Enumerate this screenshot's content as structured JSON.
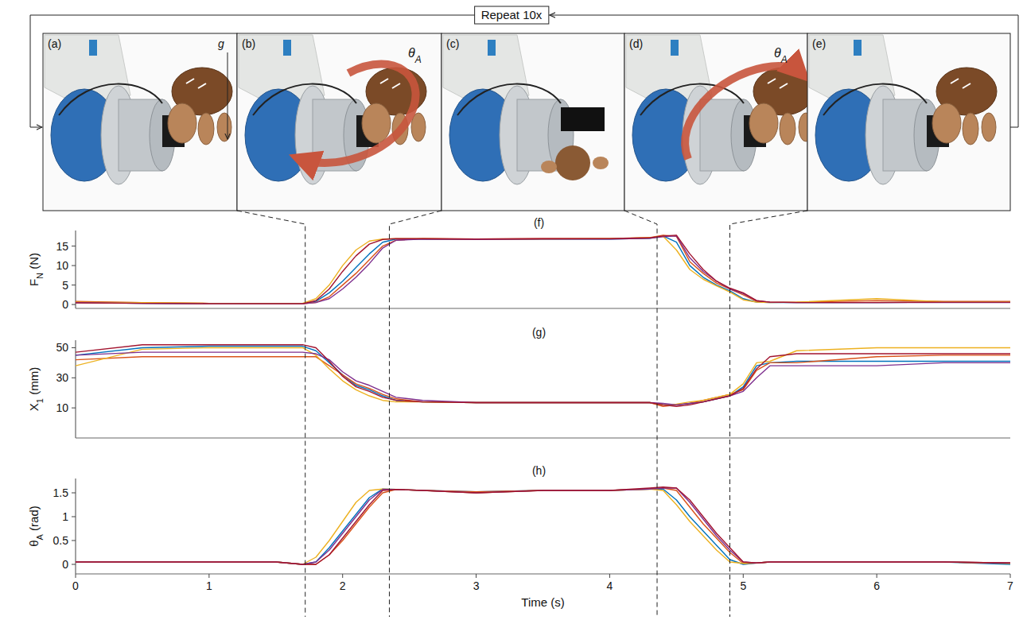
{
  "figure": {
    "repeat_label": "Repeat 10x",
    "gravity_label": "g",
    "panels": [
      {
        "label": "(a)"
      },
      {
        "label": "(b)",
        "annotation": [
          {
            "text": "θ"
          },
          {
            "text": "A",
            "sub": true
          }
        ]
      },
      {
        "label": "(c)"
      },
      {
        "label": "(d)",
        "annotation": [
          {
            "text": "θ"
          },
          {
            "text": "A",
            "sub": true
          }
        ]
      },
      {
        "label": "(e)"
      }
    ],
    "phase_times": [
      1.72,
      2.35,
      4.355,
      4.9
    ]
  },
  "chart_data": [
    {
      "type": "line",
      "title": "(f)",
      "ylabel": [
        {
          "text": "F"
        },
        {
          "text": "N",
          "sub": true
        },
        {
          "text": " (N)"
        }
      ],
      "x": [
        0,
        0.5,
        1,
        1.5,
        1.7,
        1.8,
        1.9,
        2.0,
        2.1,
        2.2,
        2.3,
        2.4,
        2.6,
        3,
        3.5,
        4,
        4.3,
        4.4,
        4.5,
        4.6,
        4.7,
        4.8,
        4.9,
        5.0,
        5.1,
        5.2,
        5.4,
        6,
        6.5,
        7
      ],
      "xlim": [
        0,
        7
      ],
      "ylim": [
        -1,
        19
      ],
      "yticks": [
        0,
        5,
        10,
        15
      ],
      "tick_labels": "y",
      "series": [
        {
          "color": "#0072bd",
          "values": [
            0.5,
            0.3,
            0.2,
            0.2,
            0.2,
            0.8,
            3,
            6,
            9.5,
            13,
            16,
            16.8,
            16.8,
            16.7,
            16.8,
            16.8,
            17,
            17.6,
            16,
            10,
            7,
            5,
            3.5,
            1.5,
            0.6,
            0.5,
            0.5,
            0.5,
            0.6,
            0.6
          ]
        },
        {
          "color": "#d95319",
          "values": [
            0.8,
            0.5,
            0.3,
            0.2,
            0.2,
            0.5,
            2,
            5,
            8,
            11.5,
            15,
            16.5,
            16.9,
            16.8,
            16.9,
            16.9,
            17.2,
            17.8,
            17.5,
            11,
            8,
            5.5,
            4,
            2.5,
            0.8,
            0.6,
            0.6,
            1,
            0.8,
            0.8
          ]
        },
        {
          "color": "#edb120",
          "values": [
            0.6,
            0.5,
            0.3,
            0.3,
            0.3,
            1.5,
            5,
            10,
            14,
            16.3,
            16.8,
            16.9,
            16.9,
            16.7,
            16.8,
            16.9,
            17.1,
            17.5,
            14,
            9,
            6.5,
            4.8,
            3.2,
            1.2,
            0.6,
            0.5,
            0.6,
            1.5,
            0.7,
            0.7
          ]
        },
        {
          "color": "#7e2f8e",
          "values": [
            0.5,
            0.3,
            0.2,
            0.2,
            0.2,
            0.5,
            1.5,
            4,
            7,
            10.5,
            14.5,
            16.5,
            16.8,
            16.7,
            16.8,
            16.8,
            17,
            17.4,
            17.6,
            12,
            8.5,
            6,
            4,
            2.8,
            1,
            0.6,
            0.5,
            0.5,
            0.5,
            0.5
          ]
        },
        {
          "color": "#a2142f",
          "values": [
            0.4,
            0.3,
            0.2,
            0.2,
            0.2,
            1,
            4,
            8.5,
            12.5,
            15.5,
            16.7,
            16.9,
            16.9,
            16.8,
            16.9,
            16.9,
            17.1,
            17.6,
            17.8,
            13,
            9,
            6,
            4.2,
            3,
            1,
            0.6,
            0.5,
            0.5,
            0.6,
            0.6
          ]
        }
      ]
    },
    {
      "type": "line",
      "title": "(g)",
      "ylabel": [
        {
          "text": "X"
        },
        {
          "text": "1",
          "sub": true
        },
        {
          "text": " (mm)"
        }
      ],
      "x": [
        0,
        0.5,
        1,
        1.5,
        1.7,
        1.8,
        1.9,
        2.0,
        2.1,
        2.2,
        2.3,
        2.4,
        2.6,
        3,
        3.5,
        4,
        4.3,
        4.4,
        4.5,
        4.6,
        4.7,
        4.8,
        4.9,
        5.0,
        5.1,
        5.2,
        5.4,
        6,
        6.5,
        7
      ],
      "xlim": [
        0,
        7
      ],
      "ylim": [
        -10,
        55
      ],
      "yticks": [
        10,
        30,
        50
      ],
      "tick_labels": "y",
      "series": [
        {
          "color": "#0072bd",
          "values": [
            45,
            50,
            51,
            51,
            51,
            48,
            40,
            32,
            25,
            22,
            18,
            15,
            14,
            13.5,
            13.5,
            13.5,
            13.5,
            12,
            12,
            13,
            14,
            16,
            18,
            24,
            38,
            40,
            41,
            41,
            41,
            41
          ]
        },
        {
          "color": "#d95319",
          "values": [
            42,
            44,
            44,
            44,
            44,
            44,
            38,
            32,
            26,
            23,
            19,
            16,
            14,
            13.5,
            13.5,
            13.5,
            13.5,
            11,
            12,
            13,
            15,
            17,
            19,
            22,
            35,
            40,
            40,
            44,
            45,
            45
          ]
        },
        {
          "color": "#edb120",
          "values": [
            38,
            49,
            50,
            50,
            50,
            45,
            36,
            28,
            22,
            18,
            15,
            14,
            14,
            13.5,
            13.5,
            13.5,
            13.5,
            12,
            12.5,
            14,
            15,
            17,
            19,
            26,
            40,
            41,
            48,
            50,
            50,
            50
          ]
        },
        {
          "color": "#7e2f8e",
          "values": [
            45,
            47,
            47,
            47,
            47,
            46,
            42,
            34,
            28,
            25,
            21,
            17,
            15,
            13.5,
            13.5,
            13.5,
            13.5,
            13,
            12,
            13,
            14,
            16,
            18,
            21,
            30,
            38,
            38,
            38,
            40,
            40
          ]
        },
        {
          "color": "#a2142f",
          "values": [
            47,
            52,
            52,
            52,
            52,
            50,
            41,
            31,
            24,
            21,
            17,
            15,
            14,
            13.5,
            13.5,
            13.5,
            13.5,
            12,
            11,
            12,
            14,
            16,
            18,
            23,
            36,
            44,
            46,
            46,
            46,
            46
          ]
        }
      ]
    },
    {
      "type": "line",
      "title": "(h)",
      "ylabel": [
        {
          "text": "θ"
        },
        {
          "text": "A",
          "sub": true
        },
        {
          "text": " (rad)"
        }
      ],
      "xlabel": "Time (s)",
      "x": [
        0,
        0.5,
        1,
        1.5,
        1.7,
        1.8,
        1.9,
        2.0,
        2.1,
        2.2,
        2.3,
        2.4,
        2.6,
        3,
        3.5,
        4,
        4.3,
        4.4,
        4.5,
        4.6,
        4.7,
        4.8,
        4.9,
        5.0,
        5.1,
        5.2,
        5.4,
        6,
        6.5,
        7
      ],
      "xlim": [
        0,
        7
      ],
      "xticks": [
        0,
        1,
        2,
        3,
        4,
        5,
        6,
        7
      ],
      "ylim": [
        -0.2,
        1.8
      ],
      "yticks": [
        0,
        0.5,
        1,
        1.5
      ],
      "series": [
        {
          "color": "#0072bd",
          "values": [
            0.05,
            0.05,
            0.05,
            0.05,
            0.0,
            0.05,
            0.35,
            0.7,
            1.05,
            1.4,
            1.58,
            1.57,
            1.55,
            1.52,
            1.55,
            1.55,
            1.58,
            1.58,
            1.35,
            1.0,
            0.7,
            0.4,
            0.1,
            0.0,
            0.03,
            0.05,
            0.05,
            0.05,
            0.05,
            0.0
          ]
        },
        {
          "color": "#d95319",
          "values": [
            0.05,
            0.05,
            0.05,
            0.05,
            0.0,
            0.0,
            0.2,
            0.5,
            0.85,
            1.2,
            1.5,
            1.57,
            1.55,
            1.52,
            1.55,
            1.55,
            1.58,
            1.6,
            1.55,
            1.2,
            0.85,
            0.55,
            0.25,
            0.02,
            0.03,
            0.05,
            0.05,
            0.05,
            0.05,
            0.03
          ]
        },
        {
          "color": "#edb120",
          "values": [
            0.05,
            0.05,
            0.05,
            0.05,
            0.0,
            0.15,
            0.5,
            0.9,
            1.3,
            1.55,
            1.58,
            1.57,
            1.55,
            1.5,
            1.55,
            1.55,
            1.58,
            1.55,
            1.25,
            0.9,
            0.6,
            0.3,
            0.05,
            0.02,
            0.03,
            0.05,
            0.05,
            0.05,
            0.05,
            0.02
          ]
        },
        {
          "color": "#7e2f8e",
          "values": [
            0.05,
            0.05,
            0.05,
            0.05,
            0.0,
            0.05,
            0.3,
            0.65,
            1.0,
            1.35,
            1.57,
            1.57,
            1.55,
            1.5,
            1.55,
            1.55,
            1.58,
            1.6,
            1.6,
            1.3,
            0.95,
            0.6,
            0.3,
            0.05,
            0.03,
            0.05,
            0.05,
            0.05,
            0.05,
            0.03
          ]
        },
        {
          "color": "#a2142f",
          "values": [
            0.05,
            0.05,
            0.05,
            0.05,
            0.0,
            0.0,
            0.2,
            0.55,
            0.9,
            1.25,
            1.55,
            1.57,
            1.55,
            1.5,
            1.55,
            1.55,
            1.6,
            1.62,
            1.6,
            1.35,
            1.0,
            0.65,
            0.35,
            0.05,
            0.03,
            0.05,
            0.05,
            0.05,
            0.05,
            0.03
          ]
        }
      ]
    }
  ]
}
